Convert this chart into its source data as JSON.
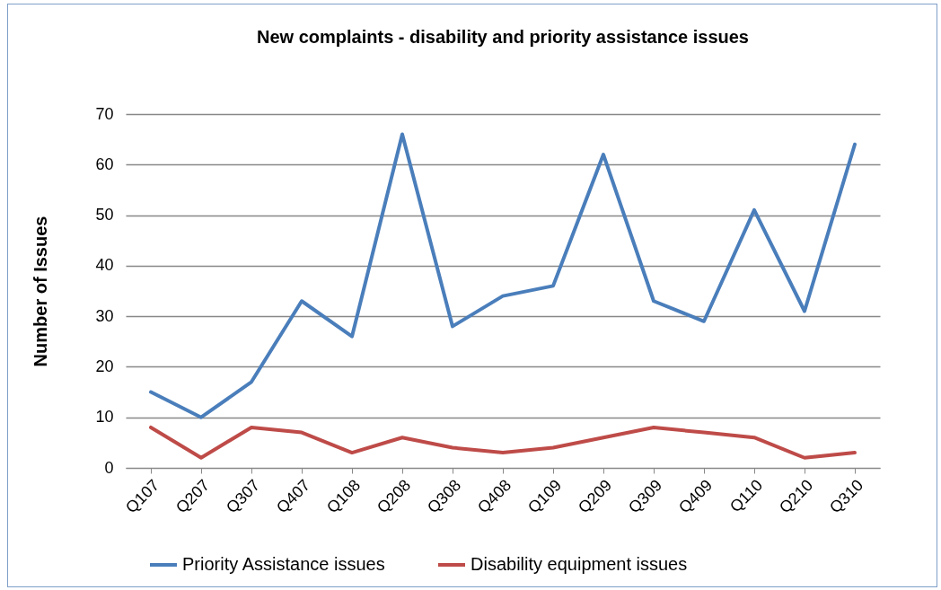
{
  "chart_data": {
    "type": "line",
    "title": "New complaints - disability and priority assistance issues",
    "ylabel": "Number of Issues",
    "categories": [
      "Q107",
      "Q207",
      "Q307",
      "Q407",
      "Q108",
      "Q208",
      "Q308",
      "Q408",
      "Q109",
      "Q209",
      "Q309",
      "Q409",
      "Q110",
      "Q210",
      "Q310"
    ],
    "series": [
      {
        "name": "Priority Assistance issues",
        "color": "#4a7ebb",
        "values": [
          15,
          10,
          17,
          33,
          26,
          66,
          28,
          34,
          36,
          62,
          33,
          29,
          51,
          31,
          64
        ]
      },
      {
        "name": "Disability equipment issues",
        "color": "#be4b48",
        "values": [
          8,
          2,
          8,
          7,
          3,
          6,
          4,
          3,
          4,
          6,
          8,
          7,
          6,
          2,
          3
        ]
      }
    ],
    "ylim": [
      0,
      70
    ],
    "yticks": [
      0,
      10,
      20,
      30,
      40,
      50,
      60,
      70
    ],
    "grid": "y",
    "legend": "bottom",
    "marker": "none",
    "line_style": "solid"
  }
}
